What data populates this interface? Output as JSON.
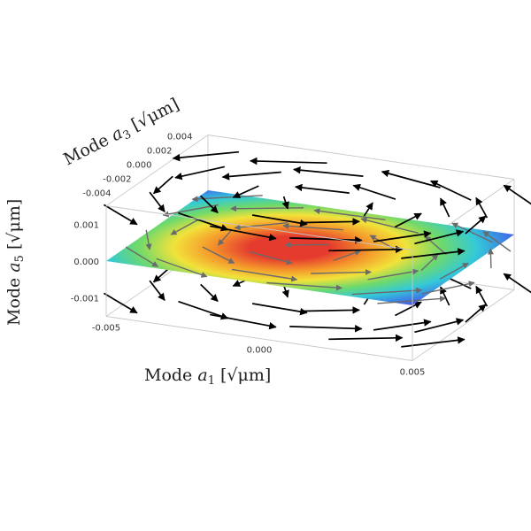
{
  "chart_data": {
    "type": "3d-vector-field",
    "title": "",
    "axes": {
      "x": {
        "name": "Mode",
        "var": "a",
        "sub": "1",
        "unit": "[√μm]",
        "range": [
          -0.005,
          0.005
        ],
        "ticks": [
          {
            "value": -0.005,
            "label": "-0.005"
          },
          {
            "value": 0.0,
            "label": "0.000"
          },
          {
            "value": 0.005,
            "label": "0.005"
          }
        ]
      },
      "y": {
        "name": "Mode",
        "var": "a",
        "sub": "3",
        "unit": "[√μm]",
        "range": [
          -0.005,
          0.005
        ],
        "ticks": [
          {
            "value": -0.004,
            "label": "-0.004"
          },
          {
            "value": -0.002,
            "label": "-0.002"
          },
          {
            "value": 0.0,
            "label": "0.000"
          },
          {
            "value": 0.002,
            "label": "0.002"
          },
          {
            "value": 0.004,
            "label": "0.004"
          }
        ]
      },
      "z": {
        "name": "Mode",
        "var": "a",
        "sub": "5",
        "unit": "[√μm]",
        "range": [
          -0.0015,
          0.0015
        ],
        "ticks": [
          {
            "value": 0.001,
            "label": "0.001"
          },
          {
            "value": 0.0,
            "label": "0.000"
          },
          {
            "value": -0.001,
            "label": "-0.001"
          }
        ]
      }
    },
    "surface": {
      "z": 0.0,
      "colormap": [
        "#6a3fc4",
        "#3f73e6",
        "#33c9d8",
        "#6fd96b",
        "#f2e23a",
        "#f59a2c",
        "#e53a2e"
      ],
      "peak_color": "#e53a2e"
    },
    "vectors": {
      "color": "#000000",
      "description": "rotational flow around the a5 axis",
      "layers_z": [
        -0.0012,
        0.0,
        0.0012
      ]
    }
  }
}
